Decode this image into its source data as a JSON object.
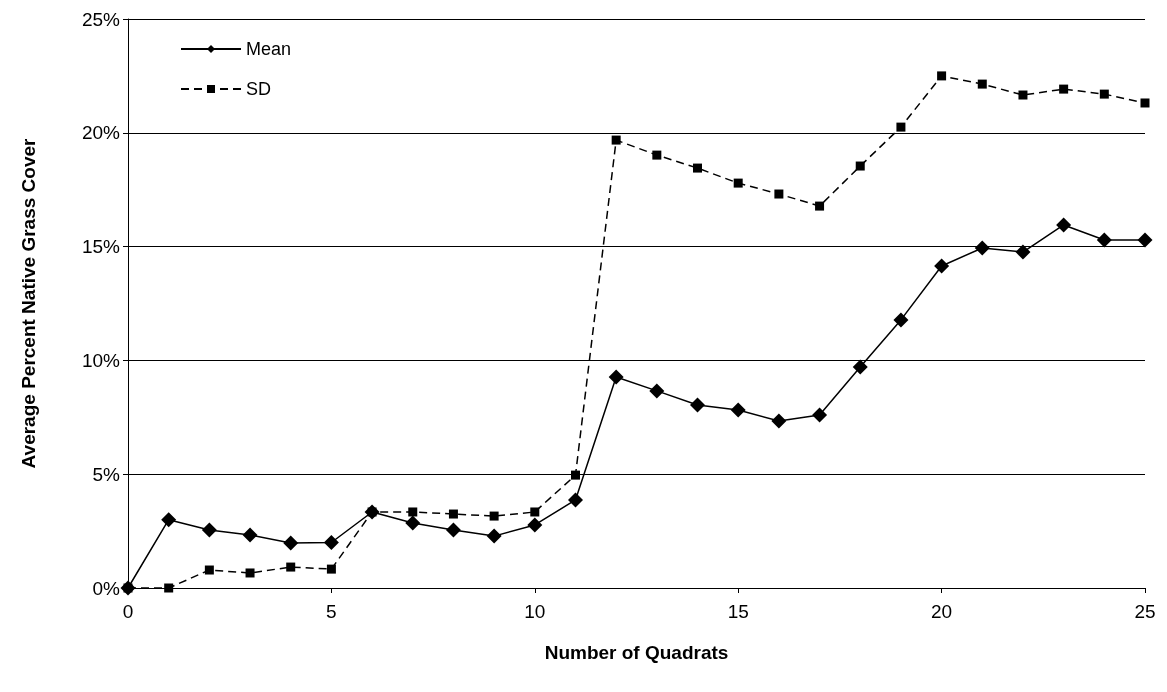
{
  "chart_data": {
    "type": "line",
    "xlabel": "Number of Quadrats",
    "ylabel": "Average Percent Native Grass Cover",
    "x": [
      0,
      1,
      2,
      3,
      4,
      5,
      6,
      7,
      8,
      9,
      10,
      11,
      12,
      13,
      14,
      15,
      16,
      17,
      18,
      19,
      20,
      21,
      22,
      23,
      24,
      25
    ],
    "series": [
      {
        "name": "Mean",
        "color": "#000000",
        "marker": "diamond",
        "line_style": "solid",
        "values": [
          0,
          3.0,
          2.55,
          2.33,
          1.98,
          2.0,
          3.34,
          2.86,
          2.55,
          2.28,
          2.77,
          3.87,
          9.27,
          8.66,
          8.04,
          7.82,
          7.34,
          7.6,
          9.71,
          11.78,
          14.15,
          14.94,
          14.76,
          15.95,
          15.29,
          15.29
        ]
      },
      {
        "name": "SD",
        "color": "#000000",
        "marker": "square",
        "line_style": "dashed",
        "values": [
          0,
          0,
          0.79,
          0.66,
          0.92,
          0.83,
          3.34,
          3.34,
          3.25,
          3.16,
          3.34,
          4.96,
          19.68,
          19.02,
          18.45,
          17.79,
          17.31,
          16.78,
          18.54,
          20.25,
          22.5,
          22.14,
          21.66,
          21.92,
          21.7,
          21.31
        ]
      }
    ],
    "xlim": [
      0,
      25
    ],
    "xticks": [
      0,
      5,
      10,
      15,
      20,
      25
    ],
    "ylim": [
      0,
      25
    ],
    "yticks": [
      {
        "value": 0,
        "label": "0%"
      },
      {
        "value": 5,
        "label": "5%"
      },
      {
        "value": 10,
        "label": "10%"
      },
      {
        "value": 15,
        "label": "15%"
      },
      {
        "value": 20,
        "label": "20%"
      },
      {
        "value": 25,
        "label": "25%"
      }
    ],
    "grid": "y",
    "legend": "top left"
  }
}
